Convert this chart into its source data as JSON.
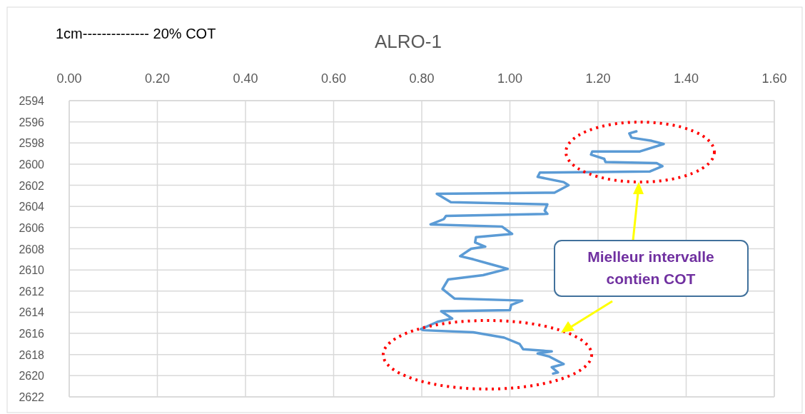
{
  "chart_data": {
    "type": "line",
    "title": "ALRO-1",
    "annotations": [
      "1cm-------------- 20% COT",
      "Mielleur intervalle contien COT"
    ],
    "xlim": [
      0,
      1.6
    ],
    "xticks": [
      {
        "value": 0,
        "label": "0.00"
      },
      {
        "value": 0.2,
        "label": "0.20"
      },
      {
        "value": 0.4,
        "label": "0.40"
      },
      {
        "value": 0.6,
        "label": "0.60"
      },
      {
        "value": 0.8,
        "label": "0.80"
      },
      {
        "value": 1,
        "label": "1.00"
      },
      {
        "value": 1.2,
        "label": "1.20"
      },
      {
        "value": 1.4,
        "label": "1.40"
      },
      {
        "value": 1.6,
        "label": "1.60"
      }
    ],
    "ylim": [
      2622,
      2594
    ],
    "yticks": [
      2594,
      2596,
      2598,
      2600,
      2602,
      2604,
      2606,
      2608,
      2610,
      2612,
      2614,
      2616,
      2618,
      2620,
      2622
    ],
    "grid": true,
    "marker": "none",
    "line_style": "solid",
    "series": [
      {
        "color": "#5b9bd5",
        "x": [
          1.287,
          1.271,
          1.276,
          1.322,
          1.349,
          1.295,
          1.187,
          1.184,
          1.214,
          1.217,
          1.333,
          1.346,
          1.317,
          1.068,
          1.063,
          1.122,
          1.133,
          1.101,
          0.834,
          0.866,
          1.085,
          1.079,
          1.085,
          0.855,
          0.85,
          0.82,
          0.982,
          1.005,
          0.923,
          0.921,
          0.944,
          0.912,
          0.887,
          0.917,
          0.96,
          0.995,
          0.939,
          0.86,
          0.847,
          0.874,
          1.028,
          1.003,
          1.0,
          0.844,
          0.869,
          0.836,
          0.798,
          0.804,
          0.917,
          0.987,
          1.022,
          1.03,
          1.095,
          1.063,
          1.09,
          1.122,
          1.095,
          1.109,
          1.098
        ],
        "values": [
          2596.9,
          2597.1,
          2597.5,
          2597.8,
          2598.1,
          2598.8,
          2598.8,
          2599.1,
          2599.5,
          2599.8,
          2599.9,
          2600.2,
          2600.7,
          2600.8,
          2601.2,
          2601.7,
          2602.0,
          2602.7,
          2602.8,
          2603.6,
          2603.8,
          2604.4,
          2604.7,
          2604.9,
          2605.2,
          2605.7,
          2605.9,
          2606.6,
          2606.9,
          2607.4,
          2607.8,
          2608.0,
          2608.7,
          2609.0,
          2609.5,
          2609.9,
          2610.5,
          2610.9,
          2611.8,
          2612.7,
          2612.9,
          2613.3,
          2613.8,
          2613.9,
          2614.6,
          2614.9,
          2615.6,
          2615.7,
          2615.9,
          2616.4,
          2617.0,
          2617.5,
          2617.7,
          2617.9,
          2618.2,
          2618.9,
          2619.2,
          2619.7,
          2619.8
        ]
      }
    ]
  }
}
